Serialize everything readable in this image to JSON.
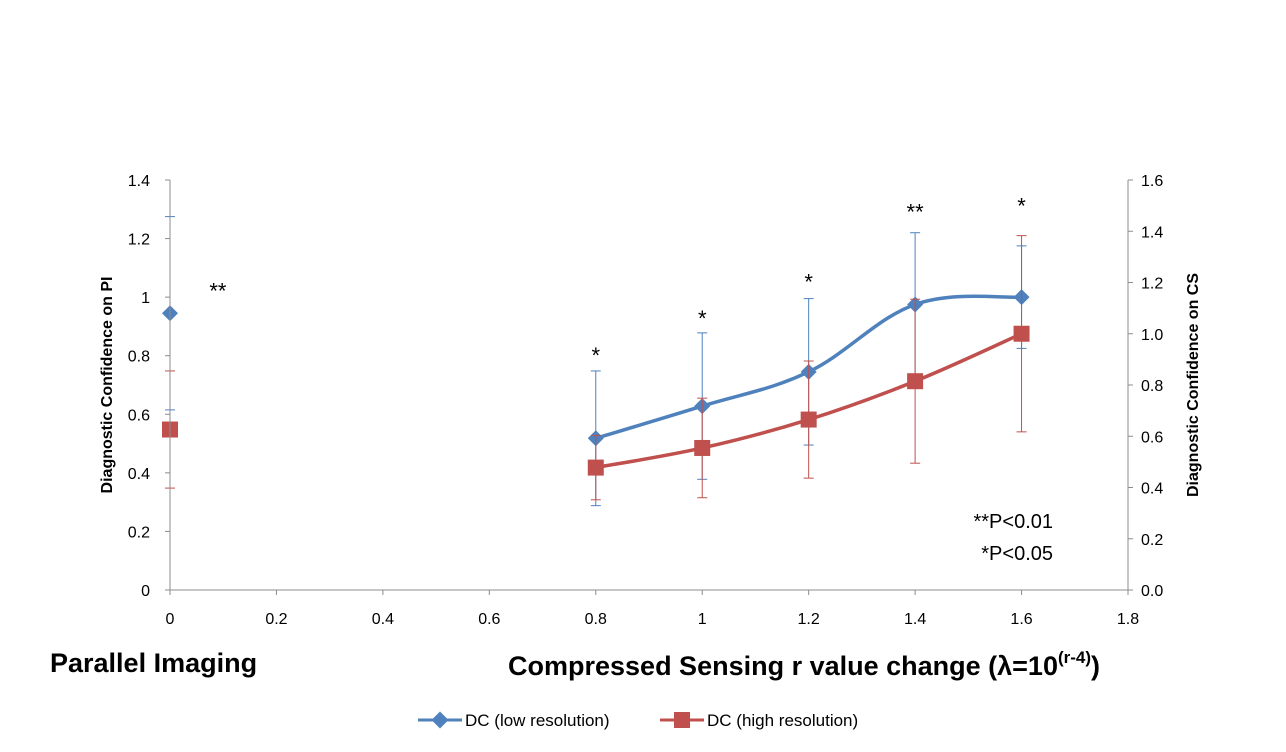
{
  "chart_data": {
    "type": "line",
    "x_ticks": [
      "0",
      "0.2",
      "0.4",
      "0.6",
      "0.8",
      "1",
      "1.2",
      "1.4",
      "1.6",
      "1.8"
    ],
    "xlim": [
      0,
      1.8
    ],
    "y_left": {
      "label": "Diagnostic Confidence on PI",
      "lim": [
        0,
        1.4
      ],
      "ticks": [
        "0",
        "0.2",
        "0.4",
        "0.6",
        "0.8",
        "1",
        "1.2",
        "1.4"
      ]
    },
    "y_right": {
      "label": "Diagnostic Confidence on CS",
      "lim": [
        0,
        1.6
      ],
      "ticks": [
        "0.0",
        "0.2",
        "0.4",
        "0.6",
        "0.8",
        "1.0",
        "1.2",
        "1.4",
        "1.6"
      ]
    },
    "captions": {
      "left": "Parallel Imaging",
      "right_main": "Compressed Sensing r value change (λ=10",
      "right_sup": "(r-4)",
      "right_close": ")"
    },
    "series": [
      {
        "name": "DC (low resolution)",
        "color": "#4F81BD",
        "marker": "diamond",
        "pi_point": {
          "x": 0,
          "y": 0.945,
          "err": 0.33
        },
        "cs_points": [
          {
            "x": 0.8,
            "y": 0.518,
            "err": 0.23
          },
          {
            "x": 1.0,
            "y": 0.628,
            "err": 0.25
          },
          {
            "x": 1.2,
            "y": 0.745,
            "err": 0.25
          },
          {
            "x": 1.4,
            "y": 0.975,
            "err": 0.245
          },
          {
            "x": 1.6,
            "y": 1.0,
            "err": 0.175
          }
        ]
      },
      {
        "name": "DC (high resolution)",
        "color": "#C0504D",
        "marker": "square",
        "pi_point": {
          "x": 0,
          "y": 0.548,
          "err": 0.2
        },
        "cs_points": [
          {
            "x": 0.8,
            "y": 0.418,
            "err": 0.11
          },
          {
            "x": 1.0,
            "y": 0.485,
            "err": 0.17
          },
          {
            "x": 1.2,
            "y": 0.582,
            "err": 0.2
          },
          {
            "x": 1.4,
            "y": 0.713,
            "err": 0.28
          },
          {
            "x": 1.6,
            "y": 0.875,
            "err": 0.335
          }
        ]
      }
    ],
    "significance": [
      {
        "x": 0.09,
        "y": 1.03,
        "label": "**"
      },
      {
        "x": 0.8,
        "y": 0.81,
        "label": "*"
      },
      {
        "x": 1.0,
        "y": 0.935,
        "label": "*"
      },
      {
        "x": 1.2,
        "y": 1.06,
        "label": "*"
      },
      {
        "x": 1.4,
        "y": 1.3,
        "label": "**"
      },
      {
        "x": 1.6,
        "y": 1.32,
        "label": "*"
      }
    ],
    "p_notes": [
      "**P<0.01",
      "*P<0.05"
    ],
    "legend_position": "bottom",
    "grid": false
  }
}
